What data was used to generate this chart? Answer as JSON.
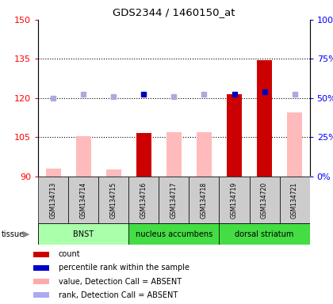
{
  "title": "GDS2344 / 1460150_at",
  "samples": [
    "GSM134713",
    "GSM134714",
    "GSM134715",
    "GSM134716",
    "GSM134717",
    "GSM134718",
    "GSM134719",
    "GSM134720",
    "GSM134721"
  ],
  "ylim_left": [
    90,
    150
  ],
  "ylim_right": [
    0,
    100
  ],
  "yticks_left": [
    90,
    105,
    120,
    135,
    150
  ],
  "yticks_right": [
    0,
    25,
    50,
    75,
    100
  ],
  "ytick_labels_left": [
    "90",
    "105",
    "120",
    "135",
    "150"
  ],
  "ytick_labels_right": [
    "0%",
    "25%",
    "50%",
    "75%",
    "100%"
  ],
  "bar_values_red": [
    null,
    null,
    null,
    106.5,
    null,
    null,
    121.5,
    134.5,
    null
  ],
  "bar_values_pink": [
    93.0,
    105.5,
    92.5,
    null,
    107.0,
    107.0,
    null,
    null,
    114.5
  ],
  "dot_blue_dark": [
    null,
    null,
    null,
    121.5,
    null,
    null,
    121.5,
    122.5,
    null
  ],
  "dot_blue_light": [
    120.0,
    121.5,
    120.5,
    null,
    120.5,
    121.5,
    null,
    null,
    121.5
  ],
  "tissue_defs": [
    {
      "label": "BNST",
      "indices": [
        0,
        1,
        2
      ],
      "color": "#aaffaa"
    },
    {
      "label": "nucleus accumbens",
      "indices": [
        3,
        4,
        5
      ],
      "color": "#44dd44"
    },
    {
      "label": "dorsal striatum",
      "indices": [
        6,
        7,
        8
      ],
      "color": "#44dd44"
    }
  ],
  "legend_colors": [
    "#cc0000",
    "#0000cc",
    "#ffaaaa",
    "#aaaaee"
  ],
  "legend_labels": [
    "count",
    "percentile rank within the sample",
    "value, Detection Call = ABSENT",
    "rank, Detection Call = ABSENT"
  ],
  "bar_width": 0.5,
  "grid_lines": [
    105,
    120,
    135
  ],
  "hgrid_color": "#aaaaaa"
}
